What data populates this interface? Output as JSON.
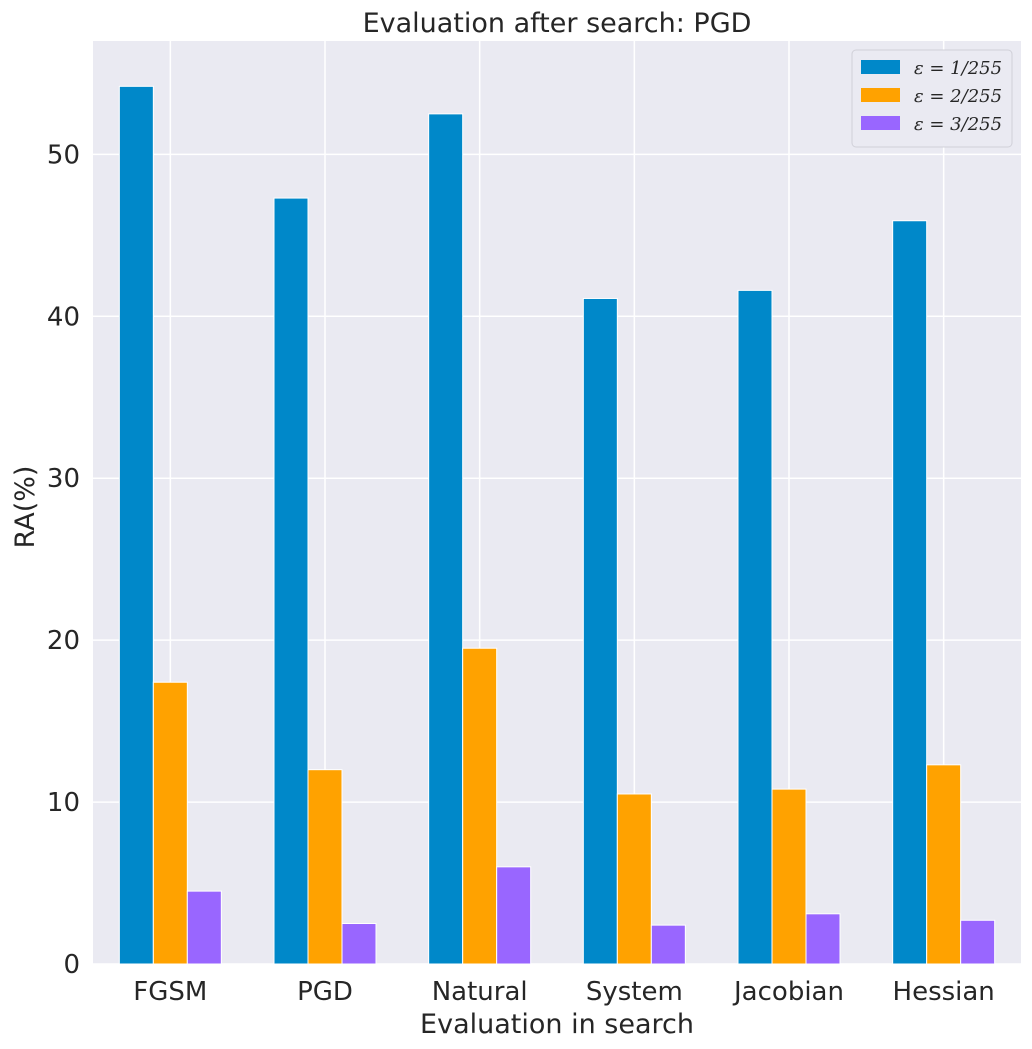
{
  "chart_data": {
    "type": "bar",
    "title": "Evaluation after search: PGD",
    "xlabel": "Evaluation in search",
    "ylabel": "RA(%)",
    "ylim": [
      0,
      57
    ],
    "yticks": [
      0,
      10,
      20,
      30,
      40,
      50
    ],
    "grid": true,
    "legend_position": "top-right",
    "categories": [
      "FGSM",
      "PGD",
      "Natural",
      "System",
      "Jacobian",
      "Hessian"
    ],
    "series": [
      {
        "name": "ε = 1/255",
        "color": "#0088c9",
        "values": [
          54.2,
          47.3,
          52.5,
          41.1,
          41.6,
          45.9
        ]
      },
      {
        "name": "ε = 2/255",
        "color": "#ffa200",
        "values": [
          17.4,
          12.0,
          19.5,
          10.5,
          10.8,
          12.3
        ]
      },
      {
        "name": "ε = 3/255",
        "color": "#9966ff",
        "values": [
          4.5,
          2.5,
          6.0,
          2.4,
          3.1,
          2.7
        ]
      }
    ],
    "background_color": "#eaeaf2",
    "grid_color": "#ffffff"
  }
}
